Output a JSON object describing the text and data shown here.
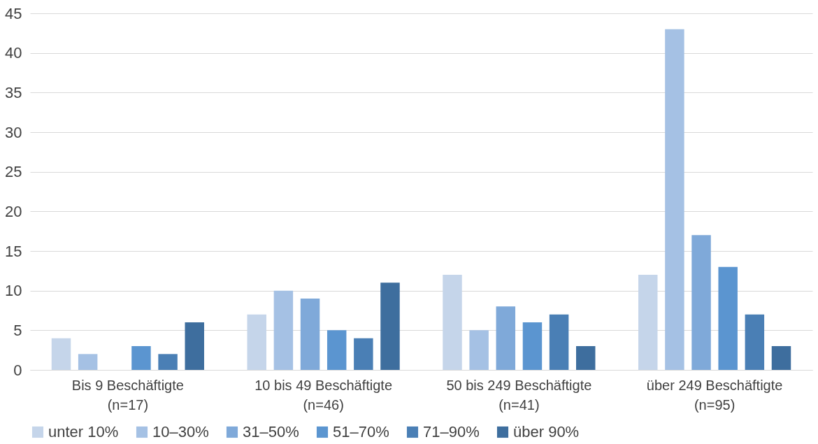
{
  "chart_data": {
    "type": "bar",
    "categories": [
      "Bis 9 Beschäftigte\n(n=17)",
      "10 bis 49 Beschäftigte\n(n=46)",
      "50 bis 249 Beschäftigte\n(n=41)",
      "über 249 Beschäftigte\n(n=95)"
    ],
    "series": [
      {
        "name": "unter 10%",
        "color": "#c5d5ea",
        "values": [
          4,
          7,
          12,
          12
        ]
      },
      {
        "name": "10–30%",
        "color": "#a5c1e4",
        "values": [
          2,
          10,
          5,
          43
        ]
      },
      {
        "name": "31–50%",
        "color": "#7fa9d9",
        "values": [
          0,
          9,
          8,
          17
        ]
      },
      {
        "name": "51–70%",
        "color": "#5b95d0",
        "values": [
          3,
          5,
          6,
          13
        ]
      },
      {
        "name": "71–90%",
        "color": "#4a7fb5",
        "values": [
          2,
          4,
          7,
          7
        ]
      },
      {
        "name": "über 90%",
        "color": "#3e6e9e",
        "values": [
          6,
          11,
          3,
          3
        ]
      }
    ],
    "ylim": [
      0,
      45
    ],
    "yticks": [
      0,
      5,
      10,
      15,
      20,
      25,
      30,
      35,
      40,
      45
    ],
    "grid": "y",
    "legend": "bottom"
  }
}
